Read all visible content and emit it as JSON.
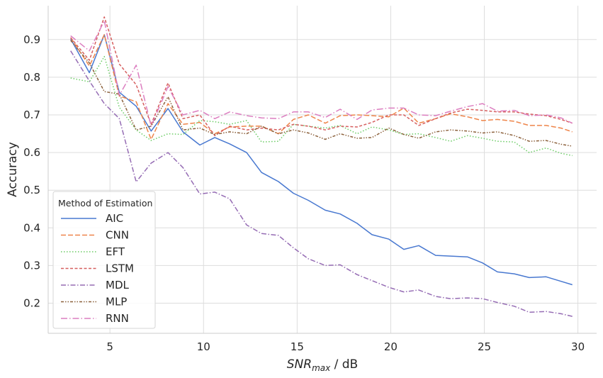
{
  "chart_data": {
    "type": "line",
    "xlabel": "SNR_max / dB",
    "ylabel": "Accuracy",
    "xlim": [
      1.7,
      31.0
    ],
    "ylim": [
      0.12,
      0.99
    ],
    "xticks": [
      5,
      10,
      15,
      20,
      25,
      30
    ],
    "yticks": [
      0.2,
      0.3,
      0.4,
      0.5,
      0.6,
      0.7,
      0.8,
      0.9
    ],
    "grid": true,
    "legend": {
      "title": "Method of Estimation",
      "position": "lower-left"
    },
    "x": [
      2.9,
      3.9,
      4.7,
      5.5,
      6.4,
      7.2,
      8.1,
      8.9,
      9.8,
      10.6,
      11.4,
      12.3,
      13.1,
      14.0,
      14.8,
      15.6,
      16.5,
      17.3,
      18.2,
      19.0,
      19.9,
      20.7,
      21.5,
      22.4,
      23.2,
      24.1,
      24.9,
      25.7,
      26.6,
      27.4,
      28.3,
      29.1,
      29.7
    ],
    "series": [
      {
        "name": "AIC",
        "color": "#4878d0",
        "dash": "",
        "values": [
          0.902,
          0.812,
          0.913,
          0.76,
          0.723,
          0.657,
          0.717,
          0.655,
          0.62,
          0.64,
          0.623,
          0.6,
          0.547,
          0.523,
          0.492,
          0.473,
          0.447,
          0.437,
          0.412,
          0.382,
          0.37,
          0.343,
          0.353,
          0.327,
          0.325,
          0.323,
          0.307,
          0.283,
          0.278,
          0.268,
          0.27,
          0.258,
          0.249
        ]
      },
      {
        "name": "CNN",
        "color": "#ee854a",
        "dash": "7,3",
        "values": [
          0.905,
          0.83,
          0.913,
          0.75,
          0.735,
          0.635,
          0.73,
          0.675,
          0.68,
          0.65,
          0.668,
          0.67,
          0.67,
          0.65,
          0.688,
          0.7,
          0.678,
          0.698,
          0.7,
          0.698,
          0.695,
          0.718,
          0.678,
          0.69,
          0.703,
          0.695,
          0.685,
          0.688,
          0.683,
          0.672,
          0.672,
          0.665,
          0.655
        ]
      },
      {
        "name": "EFT",
        "color": "#6acc64",
        "dash": "1.5,2.5",
        "values": [
          0.798,
          0.788,
          0.855,
          0.72,
          0.66,
          0.632,
          0.65,
          0.648,
          0.685,
          0.682,
          0.675,
          0.685,
          0.628,
          0.63,
          0.675,
          0.67,
          0.665,
          0.672,
          0.65,
          0.668,
          0.66,
          0.648,
          0.65,
          0.64,
          0.63,
          0.645,
          0.638,
          0.63,
          0.628,
          0.6,
          0.612,
          0.598,
          0.592
        ]
      },
      {
        "name": "LSTM",
        "color": "#d65f5f",
        "dash": "4,2.5",
        "values": [
          0.905,
          0.845,
          0.96,
          0.835,
          0.78,
          0.675,
          0.785,
          0.69,
          0.7,
          0.645,
          0.67,
          0.66,
          0.665,
          0.66,
          0.675,
          0.67,
          0.66,
          0.67,
          0.668,
          0.68,
          0.7,
          0.7,
          0.672,
          0.69,
          0.705,
          0.715,
          0.712,
          0.708,
          0.708,
          0.702,
          0.698,
          0.688,
          0.678
        ]
      },
      {
        "name": "MDL",
        "color": "#956cb4",
        "dash": "7,2.5,1.5,2.5",
        "values": [
          0.87,
          0.79,
          0.73,
          0.69,
          0.522,
          0.572,
          0.6,
          0.56,
          0.49,
          0.495,
          0.477,
          0.408,
          0.385,
          0.38,
          0.347,
          0.318,
          0.3,
          0.302,
          0.276,
          0.26,
          0.242,
          0.23,
          0.235,
          0.218,
          0.212,
          0.214,
          0.212,
          0.202,
          0.192,
          0.176,
          0.178,
          0.172,
          0.165
        ]
      },
      {
        "name": "MLP",
        "color": "#8c613c",
        "dash": "4,2,1.5,2,1.5,2",
        "values": [
          0.898,
          0.838,
          0.762,
          0.755,
          0.66,
          0.67,
          0.748,
          0.66,
          0.665,
          0.648,
          0.655,
          0.65,
          0.67,
          0.65,
          0.66,
          0.652,
          0.635,
          0.65,
          0.638,
          0.64,
          0.665,
          0.648,
          0.638,
          0.655,
          0.66,
          0.657,
          0.652,
          0.655,
          0.645,
          0.63,
          0.632,
          0.622,
          0.617
        ]
      },
      {
        "name": "RNN",
        "color": "#dc7ec0",
        "dash": "9,3,1.5,3",
        "values": [
          0.91,
          0.87,
          0.95,
          0.752,
          0.832,
          0.67,
          0.775,
          0.7,
          0.712,
          0.69,
          0.708,
          0.698,
          0.692,
          0.69,
          0.708,
          0.708,
          0.693,
          0.715,
          0.688,
          0.713,
          0.718,
          0.718,
          0.7,
          0.698,
          0.71,
          0.722,
          0.73,
          0.71,
          0.712,
          0.698,
          0.7,
          0.692,
          0.678
        ]
      }
    ]
  }
}
